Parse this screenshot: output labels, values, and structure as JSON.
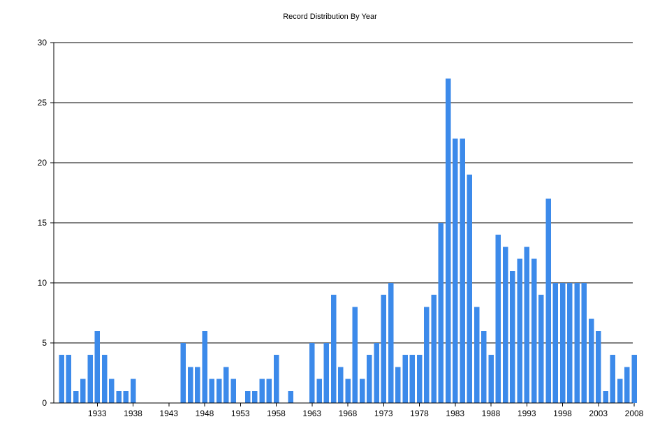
{
  "chart_data": {
    "type": "bar",
    "title": "Record Distribution By Year",
    "xlabel": "",
    "ylabel": "",
    "ylim": [
      0,
      30
    ],
    "yticks": [
      0,
      5,
      10,
      15,
      20,
      25,
      30
    ],
    "xtick_labels": [
      "1933",
      "1938",
      "1943",
      "1948",
      "1953",
      "1958",
      "1963",
      "1968",
      "1973",
      "1978",
      "1983",
      "1988",
      "1993",
      "1998",
      "2003",
      "2008"
    ],
    "categories": [
      1928,
      1929,
      1930,
      1931,
      1932,
      1933,
      1934,
      1935,
      1936,
      1937,
      1938,
      1939,
      1940,
      1941,
      1942,
      1943,
      1944,
      1945,
      1946,
      1947,
      1948,
      1949,
      1950,
      1951,
      1952,
      1953,
      1954,
      1955,
      1956,
      1957,
      1958,
      1959,
      1960,
      1961,
      1962,
      1963,
      1964,
      1965,
      1966,
      1967,
      1968,
      1969,
      1970,
      1971,
      1972,
      1973,
      1974,
      1975,
      1976,
      1977,
      1978,
      1979,
      1980,
      1981,
      1982,
      1983,
      1984,
      1985,
      1986,
      1987,
      1988,
      1989,
      1990,
      1991,
      1992,
      1993,
      1994,
      1995,
      1996,
      1997,
      1998,
      1999,
      2000,
      2001,
      2002,
      2003,
      2004,
      2005,
      2006,
      2007,
      2008
    ],
    "values": [
      4,
      4,
      1,
      2,
      4,
      6,
      4,
      2,
      1,
      1,
      2,
      0,
      0,
      0,
      0,
      0,
      0,
      5,
      3,
      3,
      6,
      2,
      2,
      3,
      2,
      0,
      1,
      1,
      2,
      2,
      4,
      0,
      1,
      0,
      0,
      5,
      2,
      5,
      9,
      3,
      2,
      8,
      2,
      4,
      5,
      9,
      10,
      3,
      4,
      4,
      4,
      8,
      9,
      15,
      27,
      22,
      22,
      19,
      8,
      6,
      4,
      14,
      13,
      11,
      12,
      13,
      12,
      9,
      17,
      10,
      10,
      10,
      10,
      10,
      7,
      6,
      1,
      4,
      2,
      3,
      4
    ],
    "grid": true,
    "legend": "none",
    "bar_color": "#3c8aea"
  }
}
